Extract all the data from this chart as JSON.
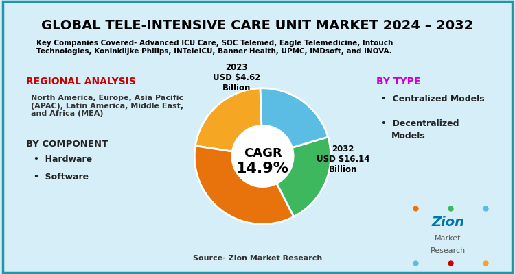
{
  "title": "GLOBAL TELE-INTENSIVE CARE UNIT MARKET 2024 – 2032",
  "subtitle": "Key Companies Covered- Advanced ICU Care, SOC Telemed, Eagle Telemedicine, Intouch\nTechnologies, Koninklijke Philips, INTeleICU, Banner Health, UPMC, iMDsoft, and INOVA.",
  "background_color": "#d6eef8",
  "title_color": "#000000",
  "subtitle_color": "#000000",
  "donut_colors": [
    "#f5a623",
    "#e8720c",
    "#3db85e",
    "#5bbde4"
  ],
  "donut_values": [
    22,
    35,
    22,
    21
  ],
  "cagr_text": "CAGR\n14.9%",
  "label_2023": "2023\nUSD $4.62\nBillion",
  "label_2032": "2032\nUSD $16.14\nBillion",
  "regional_analysis_title": "REGIONAL ANALYSIS",
  "regional_analysis_color": "#cc0000",
  "regional_analysis_text": "North America, Europe, Asia Pacific\n(APAC), Latin America, Middle East,\nand Africa (MEA)",
  "by_component_title": "BY COMPONENT",
  "by_component_items": [
    "Hardware",
    "Software"
  ],
  "by_type_title": "BY TYPE",
  "by_type_color": "#cc00cc",
  "by_type_items": [
    "Centralized Models",
    "Decentralized\nModels"
  ],
  "source_text": "Source- Zion Market Research",
  "border_color": "#2196a8",
  "logo_text_zion": "Zion",
  "logo_text_market": "Market",
  "logo_text_research": "Research"
}
